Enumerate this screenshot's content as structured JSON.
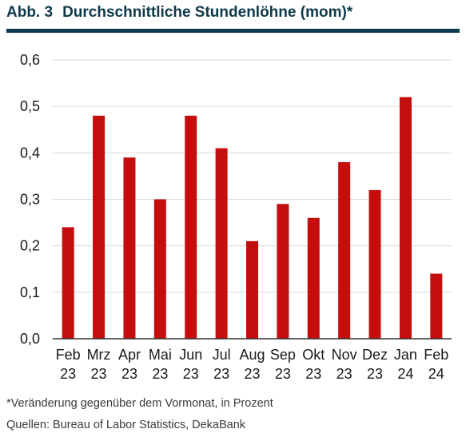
{
  "header": {
    "figure_label": "Abb. 3",
    "title": "Durchschnittliche Stundenlöhne (mom)*"
  },
  "colors": {
    "bar": "#c40d0d",
    "rule": "#0b3b4b",
    "grid": "#d9d9d9",
    "axis": "#333333"
  },
  "chart_data": {
    "type": "bar",
    "title": "Durchschnittliche Stundenlöhne (mom)*",
    "categories": [
      [
        "Feb",
        "23"
      ],
      [
        "Mrz",
        "23"
      ],
      [
        "Apr",
        "23"
      ],
      [
        "Mai",
        "23"
      ],
      [
        "Jun",
        "23"
      ],
      [
        "Jul",
        "23"
      ],
      [
        "Aug",
        "23"
      ],
      [
        "Sep",
        "23"
      ],
      [
        "Okt",
        "23"
      ],
      [
        "Nov",
        "23"
      ],
      [
        "Dez",
        "23"
      ],
      [
        "Jan",
        "24"
      ],
      [
        "Feb",
        "24"
      ]
    ],
    "values": [
      0.24,
      0.48,
      0.39,
      0.3,
      0.48,
      0.41,
      0.21,
      0.29,
      0.26,
      0.38,
      0.32,
      0.52,
      0.14
    ],
    "ylim": [
      0,
      0.6
    ],
    "yticks": [
      "0,0",
      "0,1",
      "0,2",
      "0,3",
      "0,4",
      "0,5",
      "0,6"
    ],
    "ytick_values": [
      0,
      0.1,
      0.2,
      0.3,
      0.4,
      0.5,
      0.6
    ],
    "grid": true,
    "legend": "none"
  },
  "footer": {
    "note": "*Veränderung gegenüber dem Vormonat, in Prozent",
    "source": "Quellen: Bureau of Labor Statistics, DekaBank"
  }
}
